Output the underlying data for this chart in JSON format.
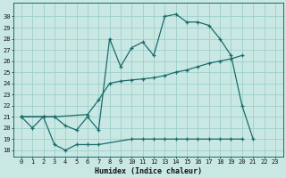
{
  "xlabel": "Humidex (Indice chaleur)",
  "bg_color": "#c9e8e4",
  "grid_color": "#9dcfca",
  "line_color": "#1a6b6b",
  "x_ticks": [
    0,
    1,
    2,
    3,
    4,
    5,
    6,
    7,
    8,
    9,
    10,
    11,
    12,
    13,
    14,
    15,
    16,
    17,
    18,
    19,
    20,
    21,
    22,
    23
  ],
  "y_ticks": [
    18,
    19,
    20,
    21,
    22,
    23,
    24,
    25,
    26,
    27,
    28,
    29,
    30
  ],
  "ylim": [
    17.4,
    31.2
  ],
  "xlim": [
    -0.7,
    23.7
  ],
  "line1_x": [
    0,
    1,
    2,
    3,
    4,
    5,
    6,
    7,
    8,
    9,
    10,
    11,
    12,
    13,
    14,
    15,
    16,
    17,
    18,
    19,
    20,
    21
  ],
  "line1_y": [
    21.0,
    20.0,
    21.0,
    21.0,
    20.2,
    19.8,
    21.0,
    19.8,
    28.0,
    25.5,
    27.2,
    27.7,
    26.5,
    30.0,
    30.2,
    29.5,
    29.5,
    29.2,
    28.0,
    26.5,
    22.0,
    19.0
  ],
  "line2_x": [
    0,
    2,
    3,
    6,
    7,
    8,
    9,
    10,
    11,
    12,
    13,
    14,
    15,
    16,
    17,
    18,
    19,
    20
  ],
  "line2_y": [
    21.0,
    21.0,
    21.0,
    21.2,
    22.5,
    24.0,
    24.2,
    24.3,
    24.4,
    24.5,
    24.7,
    25.0,
    25.2,
    25.5,
    25.8,
    26.0,
    26.2,
    26.5
  ],
  "line3_x": [
    0,
    2,
    3,
    4,
    5,
    6,
    7,
    10,
    11,
    12,
    13,
    14,
    15,
    16,
    17,
    18,
    19,
    20
  ],
  "line3_y": [
    21.0,
    21.0,
    18.5,
    18.0,
    18.5,
    18.5,
    18.5,
    19.0,
    19.0,
    19.0,
    19.0,
    19.0,
    19.0,
    19.0,
    19.0,
    19.0,
    19.0,
    19.0
  ]
}
